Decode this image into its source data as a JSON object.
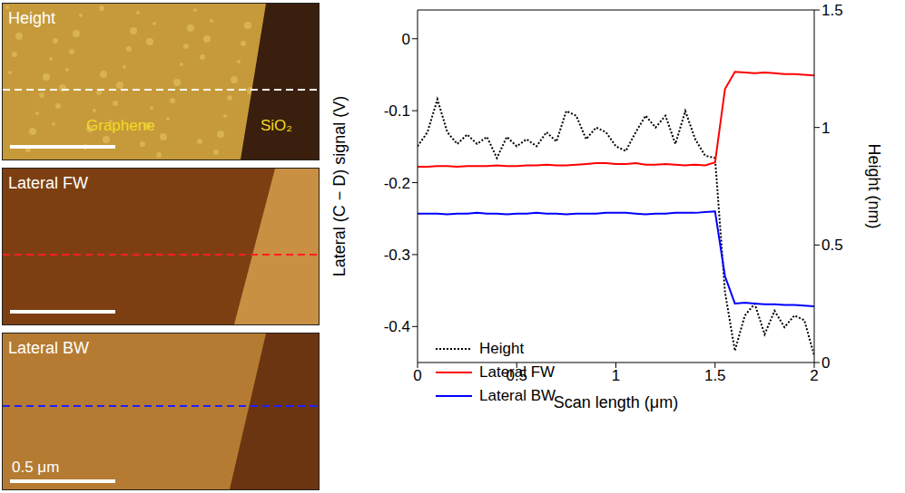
{
  "images": [
    {
      "title": "Height",
      "labels": [
        "Graphene",
        "SiO₂"
      ]
    },
    {
      "title": "Lateral FW"
    },
    {
      "title": "Lateral BW",
      "scale_bar": "0.5 μm"
    }
  ],
  "chart_data": {
    "type": "line",
    "xlabel": "Scan length (μm)",
    "ylabel": "Lateral (C − D) signal (V)",
    "y2label": "Height (nm)",
    "x": [
      0,
      0.05,
      0.1,
      0.15,
      0.2,
      0.25,
      0.3,
      0.35,
      0.4,
      0.45,
      0.5,
      0.55,
      0.6,
      0.65,
      0.7,
      0.75,
      0.8,
      0.85,
      0.9,
      0.95,
      1.0,
      1.05,
      1.1,
      1.15,
      1.2,
      1.25,
      1.3,
      1.35,
      1.4,
      1.45,
      1.5,
      1.55,
      1.6,
      1.65,
      1.7,
      1.75,
      1.8,
      1.85,
      1.9,
      1.95,
      2.0
    ],
    "xlim": [
      0,
      2
    ],
    "xticks": [
      0,
      0.5,
      1,
      1.5,
      2
    ],
    "ylim": [
      -0.45,
      0.04
    ],
    "yticks": [
      -0.4,
      -0.3,
      -0.2,
      -0.1,
      0
    ],
    "y2lim": [
      0,
      1.5
    ],
    "y2ticks": [
      0,
      0.5,
      1,
      1.5
    ],
    "legend": "lower left",
    "series": [
      {
        "name": "Height",
        "color": "#000000",
        "line_style": "dotted",
        "axis": "y2",
        "values": [
          0.92,
          0.98,
          1.12,
          0.98,
          0.93,
          0.97,
          0.93,
          0.96,
          0.87,
          0.96,
          0.92,
          0.95,
          0.92,
          0.98,
          0.94,
          1.07,
          1.05,
          0.95,
          1.0,
          0.98,
          0.92,
          0.9,
          0.98,
          1.05,
          1.0,
          1.05,
          0.93,
          1.07,
          0.95,
          0.88,
          0.87,
          0.3,
          0.05,
          0.2,
          0.25,
          0.12,
          0.22,
          0.15,
          0.2,
          0.18,
          0.03
        ]
      },
      {
        "name": "Lateral FW",
        "color": "#ff0000",
        "line_style": "solid",
        "values": [
          -0.178,
          -0.178,
          -0.177,
          -0.177,
          -0.178,
          -0.177,
          -0.177,
          -0.177,
          -0.176,
          -0.177,
          -0.177,
          -0.176,
          -0.176,
          -0.175,
          -0.176,
          -0.176,
          -0.175,
          -0.174,
          -0.173,
          -0.173,
          -0.174,
          -0.174,
          -0.173,
          -0.175,
          -0.175,
          -0.174,
          -0.175,
          -0.176,
          -0.175,
          -0.176,
          -0.172,
          -0.07,
          -0.046,
          -0.047,
          -0.048,
          -0.047,
          -0.048,
          -0.049,
          -0.049,
          -0.05,
          -0.051
        ]
      },
      {
        "name": "Lateral BW",
        "color": "#0000ff",
        "line_style": "solid",
        "values": [
          -0.243,
          -0.243,
          -0.243,
          -0.244,
          -0.243,
          -0.243,
          -0.242,
          -0.243,
          -0.243,
          -0.244,
          -0.243,
          -0.243,
          -0.242,
          -0.243,
          -0.243,
          -0.244,
          -0.243,
          -0.243,
          -0.243,
          -0.242,
          -0.242,
          -0.242,
          -0.243,
          -0.244,
          -0.243,
          -0.243,
          -0.242,
          -0.242,
          -0.242,
          -0.241,
          -0.24,
          -0.33,
          -0.368,
          -0.367,
          -0.368,
          -0.369,
          -0.369,
          -0.37,
          -0.37,
          -0.371,
          -0.372
        ]
      }
    ]
  }
}
